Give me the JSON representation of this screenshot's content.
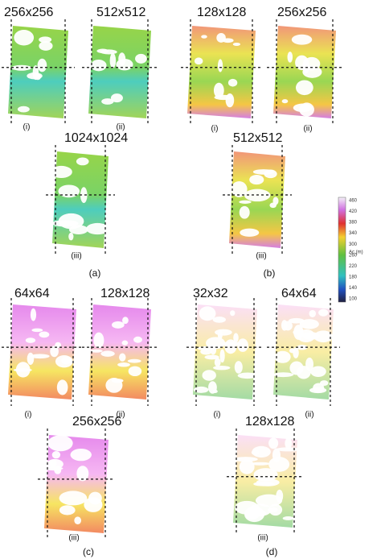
{
  "panels": [
    {
      "label": "(a)",
      "images": [
        {
          "title": "256x256",
          "label": "(i)"
        },
        {
          "title": "512x512",
          "label": "(ii)"
        },
        {
          "title": "1024x1024",
          "label": "(iii)"
        }
      ]
    },
    {
      "label": "(b)",
      "images": [
        {
          "title": "128x128",
          "label": "(i)"
        },
        {
          "title": "256x256",
          "label": "(ii)"
        },
        {
          "title": "512x512",
          "label": "(iii)"
        }
      ]
    },
    {
      "label": "(c)",
      "images": [
        {
          "title": "64x64",
          "label": "(i)"
        },
        {
          "title": "128x128",
          "label": "(ii)"
        },
        {
          "title": "256x256",
          "label": "(iii)"
        }
      ]
    },
    {
      "label": "(d)",
      "images": [
        {
          "title": "32x32",
          "label": "(i)"
        },
        {
          "title": "64x64",
          "label": "(ii)"
        },
        {
          "title": "128x128",
          "label": "(iii)"
        }
      ]
    }
  ],
  "colorbar": {
    "title": "Ac (m)",
    "ticks": [
      "460",
      "420",
      "380",
      "340",
      "300",
      "260",
      "220",
      "180",
      "140",
      "100"
    ]
  }
}
